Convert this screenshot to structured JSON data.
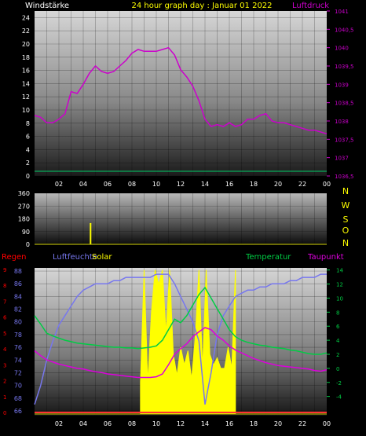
{
  "header": {
    "left_label": "Windstärke",
    "title": "24 hour graph day : Januar 01 2022",
    "right_label": "Luftdruck"
  },
  "colors": {
    "background": "#000000",
    "wind_axis": "#ffffff",
    "pressure": "#cc00cc",
    "wind_line": "#00cc66",
    "direction": "#ffff00",
    "regen": "#ff0000",
    "luftfeuchte": "#7777ee",
    "solar": "#ffff00",
    "temperatur": "#00cc44",
    "taupunkt": "#dd00dd",
    "title": "#ffff00"
  },
  "chart_data": [
    {
      "type": "line",
      "title": "24 hour graph day : Januar 01 2022",
      "x_tick_labels": [
        "02",
        "04",
        "06",
        "08",
        "10",
        "12",
        "14",
        "16",
        "18",
        "20",
        "22",
        "00"
      ],
      "left_axis": {
        "label": "Windstärke",
        "ticks": [
          0,
          2,
          4,
          6,
          8,
          10,
          12,
          14,
          16,
          18,
          20,
          22,
          24
        ],
        "ylim": [
          0,
          25
        ]
      },
      "right_axis": {
        "label": "Luftdruck",
        "ticks": [
          "1036,5",
          "1037",
          "1037,5",
          "1038",
          "1038,5",
          "1039",
          "1039,5",
          "1040",
          "1040,5",
          "1041"
        ],
        "ylim": [
          1036.5,
          1041
        ]
      },
      "series": [
        {
          "name": "Luftdruck",
          "axis": "right",
          "x": [
            0,
            0.5,
            1,
            1.5,
            2,
            2.5,
            3,
            3.5,
            4,
            4.5,
            5,
            5.5,
            6,
            6.5,
            7,
            7.5,
            8,
            8.5,
            9,
            9.5,
            10,
            10.5,
            11,
            11.5,
            12,
            12.5,
            13,
            13.5,
            14,
            14.5,
            15,
            15.5,
            16,
            16.5,
            17,
            17.5,
            18,
            18.5,
            19,
            19.5,
            20,
            20.5,
            21,
            21.5,
            22,
            22.5,
            23,
            23.5,
            24
          ],
          "y": [
            1038.15,
            1038.1,
            1037.95,
            1037.95,
            1038.05,
            1038.2,
            1038.8,
            1038.75,
            1039.0,
            1039.3,
            1039.5,
            1039.35,
            1039.3,
            1039.35,
            1039.5,
            1039.65,
            1039.85,
            1039.95,
            1039.9,
            1039.9,
            1039.9,
            1039.95,
            1040.0,
            1039.8,
            1039.4,
            1039.2,
            1038.95,
            1038.55,
            1038.05,
            1037.85,
            1037.9,
            1037.85,
            1037.95,
            1037.85,
            1037.9,
            1038.05,
            1038.05,
            1038.15,
            1038.2,
            1038.0,
            1037.95,
            1037.95,
            1037.9,
            1037.85,
            1037.8,
            1037.75,
            1037.75,
            1037.7,
            1037.65
          ]
        },
        {
          "name": "Windstärke",
          "axis": "left",
          "x": [
            0,
            24
          ],
          "y": [
            0,
            0
          ]
        }
      ]
    },
    {
      "type": "bar",
      "y_tick_labels": [
        "0",
        "90",
        "180",
        "270",
        "360"
      ],
      "ylim": [
        0,
        360
      ],
      "direction_labels": [
        "N",
        "W",
        "S",
        "O",
        "N"
      ],
      "x_tick_labels": [
        "02",
        "04",
        "06",
        "08",
        "10",
        "12",
        "14",
        "16",
        "18",
        "20",
        "22",
        "00"
      ],
      "bars": [
        {
          "x": 4.6,
          "y": 150
        }
      ]
    },
    {
      "type": "line",
      "x_tick_labels": [
        "02",
        "04",
        "06",
        "08",
        "10",
        "12",
        "14",
        "16",
        "18",
        "20",
        "22",
        "00"
      ],
      "legend": {
        "regen": "Regen",
        "luftfeuchte": "Luftfeuchte",
        "solar": "Solar",
        "temperatur": "Temperatur",
        "taupunkt": "Taupunkt"
      },
      "regen_axis": {
        "ticks": [
          "0",
          "1",
          "2",
          "3",
          "4",
          "5",
          "6",
          "7",
          "8",
          "9"
        ]
      },
      "humidity_axis": {
        "ticks": [
          66,
          68,
          70,
          72,
          74,
          76,
          78,
          80,
          82,
          84,
          86,
          88
        ],
        "ylim": [
          65.5,
          88.5
        ]
      },
      "temperature_axis": {
        "ticks": [
          -4,
          -2,
          0,
          2,
          4,
          6,
          8,
          10,
          12,
          14
        ],
        "ylim": [
          -6.5,
          14.3
        ]
      },
      "series": [
        {
          "name": "Luftfeuchte",
          "axis": "humidity",
          "x": [
            0,
            0.5,
            1,
            1.5,
            2,
            2.5,
            3,
            3.5,
            4,
            4.5,
            5,
            5.5,
            6,
            6.5,
            7,
            7.5,
            8,
            8.5,
            9,
            9.5,
            10,
            10.5,
            11,
            11.5,
            12,
            12.5,
            13,
            13.5,
            14,
            14.5,
            15,
            15.5,
            16,
            16.5,
            17,
            17.5,
            18,
            18.5,
            19,
            19.5,
            20,
            20.5,
            21,
            21.5,
            22,
            22.5,
            23,
            23.5,
            24
          ],
          "y": [
            67,
            70,
            74,
            77,
            79.5,
            81,
            82.5,
            84,
            85,
            85.5,
            86,
            86,
            86,
            86.5,
            86.5,
            87,
            87,
            87,
            87,
            87,
            87.5,
            87.5,
            87.5,
            86,
            84,
            82,
            80,
            77,
            67,
            72,
            78,
            81,
            82.5,
            84,
            84.5,
            85,
            85,
            85.5,
            85.5,
            86,
            86,
            86,
            86.5,
            86.5,
            87,
            87,
            87,
            87.5,
            87.5
          ]
        },
        {
          "name": "Temperatur",
          "axis": "temperature",
          "x": [
            0,
            0.5,
            1,
            1.5,
            2,
            2.5,
            3,
            3.5,
            4,
            4.5,
            5,
            5.5,
            6,
            6.5,
            7,
            7.5,
            8,
            8.5,
            9,
            9.5,
            10,
            10.5,
            11,
            11.5,
            12,
            12.5,
            13,
            13.5,
            14,
            14.5,
            15,
            15.5,
            16,
            16.5,
            17,
            17.5,
            18,
            18.5,
            19,
            19.5,
            20,
            20.5,
            21,
            21.5,
            22,
            22.5,
            23,
            23.5,
            24
          ],
          "y": [
            7.5,
            6.3,
            5.0,
            4.6,
            4.3,
            4.0,
            3.8,
            3.6,
            3.5,
            3.4,
            3.3,
            3.2,
            3.1,
            3.0,
            3.0,
            2.9,
            2.9,
            2.8,
            2.9,
            3.0,
            3.2,
            4.0,
            5.5,
            7.0,
            6.5,
            7.5,
            9.0,
            10.5,
            11.5,
            10.0,
            8.5,
            7.0,
            5.5,
            4.5,
            4.0,
            3.7,
            3.5,
            3.3,
            3.2,
            3.0,
            2.9,
            2.8,
            2.6,
            2.5,
            2.3,
            2.1,
            2.0,
            2.0,
            2.2
          ]
        },
        {
          "name": "Taupunkt",
          "axis": "temperature",
          "x": [
            0,
            0.5,
            1,
            1.5,
            2,
            2.5,
            3,
            3.5,
            4,
            4.5,
            5,
            5.5,
            6,
            6.5,
            7,
            7.5,
            8,
            8.5,
            9,
            9.5,
            10,
            10.5,
            11,
            11.5,
            12,
            12.5,
            13,
            13.5,
            14,
            14.5,
            15,
            15.5,
            16,
            16.5,
            17,
            17.5,
            18,
            18.5,
            19,
            19.5,
            20,
            20.5,
            21,
            21.5,
            22,
            22.5,
            23,
            23.5,
            24
          ],
          "y": [
            2.5,
            1.8,
            1.2,
            0.9,
            0.6,
            0.4,
            0.2,
            0.0,
            -0.1,
            -0.3,
            -0.5,
            -0.6,
            -0.8,
            -0.9,
            -1.0,
            -1.1,
            -1.2,
            -1.3,
            -1.3,
            -1.3,
            -1.2,
            -0.8,
            0.5,
            2.0,
            2.8,
            3.5,
            4.5,
            5.2,
            5.8,
            5.5,
            4.6,
            4.0,
            3.2,
            2.6,
            2.2,
            1.8,
            1.4,
            1.1,
            0.8,
            0.6,
            0.4,
            0.3,
            0.2,
            0.1,
            0.0,
            -0.1,
            -0.3,
            -0.4,
            -0.2
          ]
        },
        {
          "name": "Solar",
          "axis": "temperature",
          "x": [
            8.7,
            9.0,
            9.3,
            9.6,
            9.9,
            10.2,
            10.5,
            10.8,
            11.1,
            11.4,
            11.7,
            12.0,
            12.3,
            12.6,
            12.9,
            13.2,
            13.5,
            13.8,
            14.1,
            14.4,
            14.7,
            15.0,
            15.3,
            15.6,
            15.9,
            16.2,
            16.5
          ],
          "y": [
            -2.0,
            14.0,
            -2.0,
            8.0,
            14.0,
            12.0,
            14.0,
            5.0,
            14.0,
            2.0,
            -1.0,
            3.0,
            0.5,
            2.5,
            -1.5,
            4.5,
            14.0,
            0.0,
            14.0,
            2.0,
            0.5,
            1.5,
            0.0,
            0.0,
            3.0,
            0.0,
            14.0
          ]
        },
        {
          "name": "Regen",
          "axis": "regen",
          "x": [
            0,
            24
          ],
          "y": [
            0,
            0
          ]
        }
      ]
    }
  ]
}
